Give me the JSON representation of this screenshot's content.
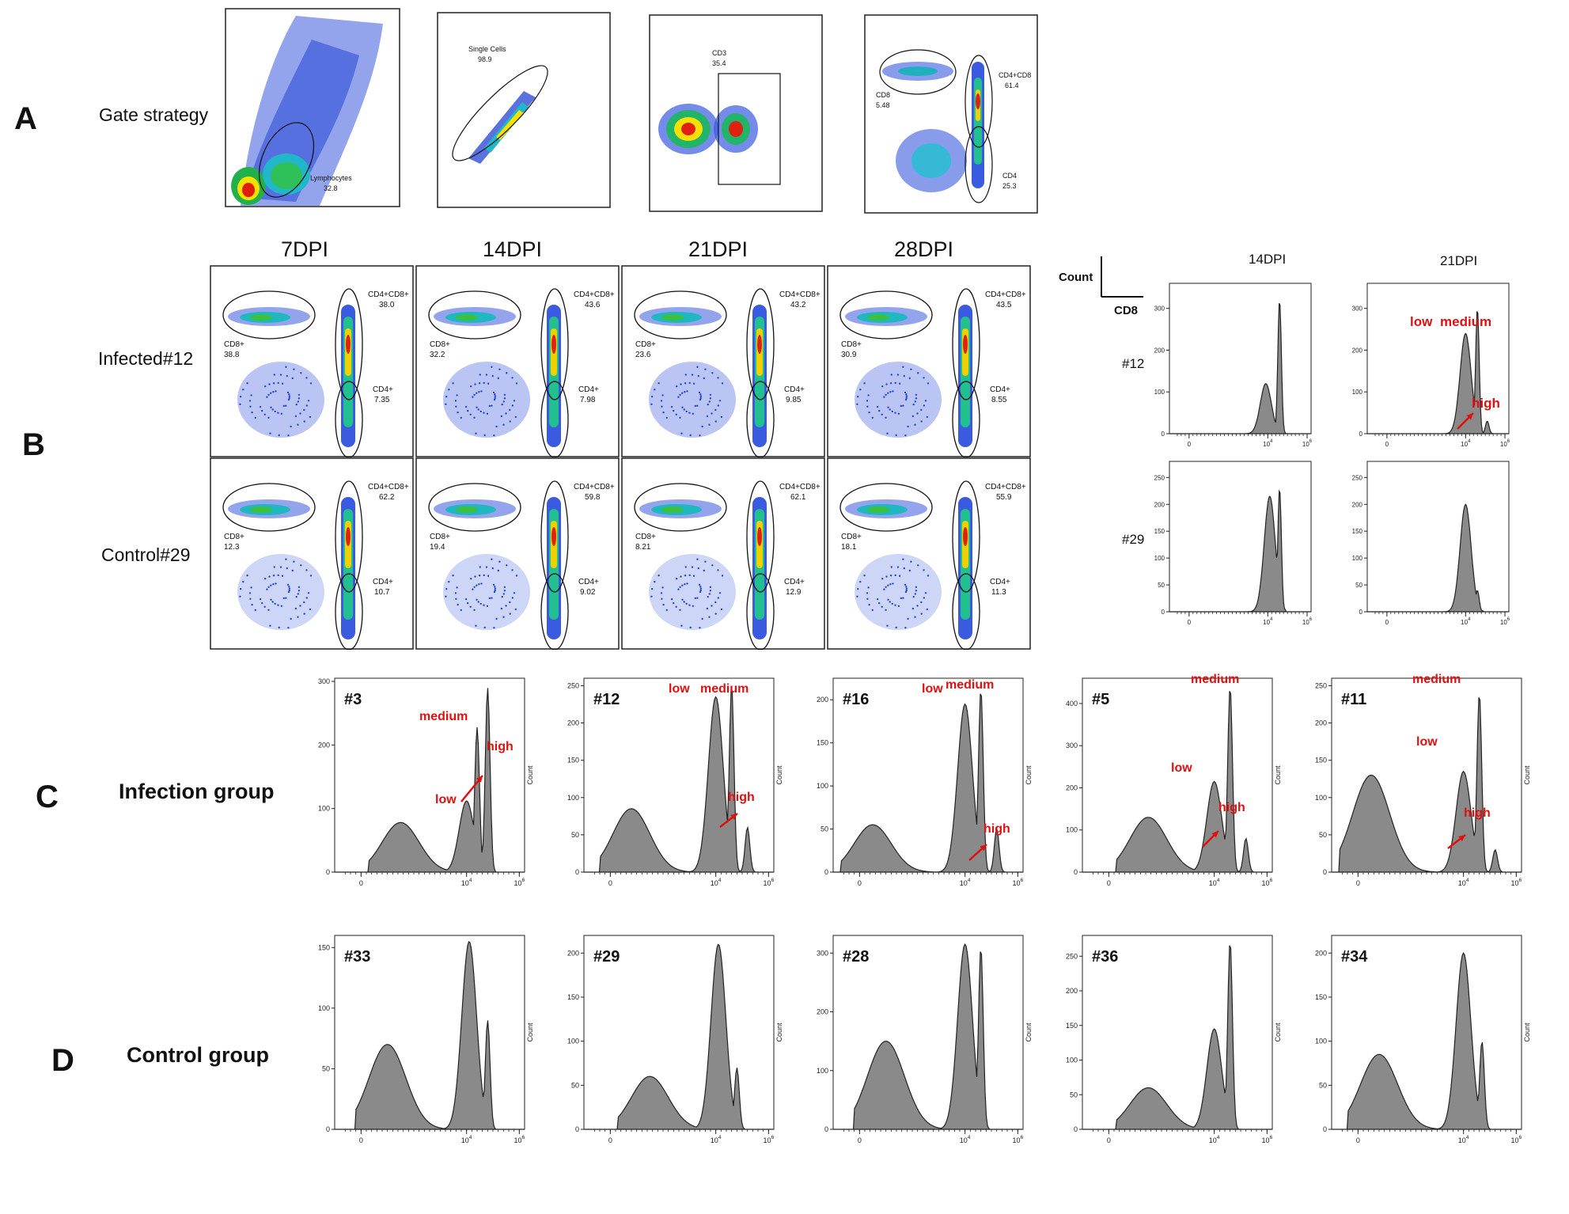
{
  "panel_labels": {
    "A": "A",
    "B": "B",
    "C": "C",
    "D": "D"
  },
  "panel_a": {
    "row_label": "Gate strategy",
    "gates": [
      {
        "name": "Lymphocytes",
        "value": "32.8"
      },
      {
        "name": "Single Cells",
        "value": "98.9"
      },
      {
        "name": "CD3",
        "value": "35.4"
      },
      {
        "name_cd8": "CD8",
        "value_cd8": "5.48",
        "name_dp": "CD4+CD8",
        "value_dp": "61.4",
        "name_cd4": "CD4",
        "value_cd4": "25.3"
      }
    ]
  },
  "panel_b": {
    "timepoints": [
      "7DPI",
      "14DPI",
      "21DPI",
      "28DPI"
    ],
    "rows": [
      {
        "label": "Infected#12",
        "plots": [
          {
            "dp": "38.0",
            "cd8": "38.8",
            "cd4": "7.35"
          },
          {
            "dp": "43.6",
            "cd8": "32.2",
            "cd4": "7.98"
          },
          {
            "dp": "43.2",
            "cd8": "23.6",
            "cd4": "9.85"
          },
          {
            "dp": "43.5",
            "cd8": "30.9",
            "cd4": "8.55"
          }
        ]
      },
      {
        "label": "Control#29",
        "plots": [
          {
            "dp": "62.2",
            "cd8": "12.3",
            "cd4": "10.7"
          },
          {
            "dp": "59.8",
            "cd8": "19.4",
            "cd4": "9.02"
          },
          {
            "dp": "62.1",
            "cd8": "8.21",
            "cd4": "12.9"
          },
          {
            "dp": "55.9",
            "cd8": "18.1",
            "cd4": "11.3"
          }
        ]
      }
    ],
    "gate_names": {
      "dp": "CD4+CD8+",
      "cd8": "CD8+",
      "cd4": "CD4+"
    },
    "legend": {
      "count": "Count",
      "cd8": "CD8"
    },
    "hist_columns": [
      "14DPI",
      "21DPI"
    ],
    "hist_rows": [
      "#12",
      "#29"
    ],
    "peak_labels": {
      "low": "low",
      "medium": "medium",
      "high": "high"
    }
  },
  "panel_c": {
    "row_label": "Infection group"
  },
  "panel_d": {
    "row_label": "Control group"
  },
  "colors": {
    "fill": "#8a8a8a",
    "annotation": "#e01010"
  },
  "chart_data": [
    {
      "type": "area",
      "id": "B-hist-12-14DPI",
      "xlabel": "CD8",
      "ylabel": "Count",
      "x_scale": "biexponential",
      "x_ticks": [
        "0",
        "10^4",
        "10^6"
      ],
      "y_ticks": [
        0,
        100,
        200,
        300
      ],
      "ylim": [
        0,
        360
      ],
      "peaks": [
        {
          "x": 3.9,
          "y": 120
        },
        {
          "x": 4.6,
          "y": 320
        }
      ]
    },
    {
      "type": "area",
      "id": "B-hist-12-21DPI",
      "xlabel": "CD8",
      "ylabel": "Count",
      "x_scale": "biexponential",
      "x_ticks": [
        "0",
        "10^4",
        "10^6"
      ],
      "y_ticks": [
        0,
        100,
        200,
        300
      ],
      "ylim": [
        0,
        360
      ],
      "peaks": [
        {
          "x": 4.0,
          "y": 240,
          "label": "low"
        },
        {
          "x": 4.6,
          "y": 300,
          "label": "medium"
        },
        {
          "x": 5.1,
          "y": 30,
          "label": "high"
        }
      ]
    },
    {
      "type": "area",
      "id": "B-hist-29-14DPI",
      "xlabel": "CD8",
      "ylabel": "Count",
      "x_scale": "biexponential",
      "x_ticks": [
        "0",
        "10^4",
        "10^6"
      ],
      "y_ticks": [
        0,
        50,
        100,
        150,
        200,
        250
      ],
      "ylim": [
        0,
        280
      ],
      "peaks": [
        {
          "x": 4.1,
          "y": 215
        },
        {
          "x": 4.6,
          "y": 230
        }
      ]
    },
    {
      "type": "area",
      "id": "B-hist-29-21DPI",
      "xlabel": "CD8",
      "ylabel": "Count",
      "x_scale": "biexponential",
      "x_ticks": [
        "0",
        "10^4",
        "10^6"
      ],
      "y_ticks": [
        0,
        50,
        100,
        150,
        200,
        250
      ],
      "ylim": [
        0,
        280
      ],
      "peaks": [
        {
          "x": 4.0,
          "y": 200
        },
        {
          "x": 4.6,
          "y": 40
        }
      ]
    },
    {
      "type": "area",
      "id": "C-3",
      "label": "#3",
      "ylabel": "Count",
      "x_ticks": [
        "0",
        "10^4",
        "10^6"
      ],
      "y_ticks": [
        0,
        100,
        200,
        300
      ],
      "ylim": [
        0,
        305
      ],
      "peaks": [
        {
          "x": 1.5,
          "y": 78
        },
        {
          "x": 4.0,
          "y": 112,
          "label": "low"
        },
        {
          "x": 4.4,
          "y": 228,
          "label": "medium"
        },
        {
          "x": 4.8,
          "y": 290,
          "label": "high"
        }
      ]
    },
    {
      "type": "area",
      "id": "C-12",
      "label": "#12",
      "ylabel": "Count",
      "x_ticks": [
        "0",
        "10^4",
        "10^6"
      ],
      "y_ticks": [
        0,
        50,
        100,
        150,
        200,
        250
      ],
      "ylim": [
        0,
        260
      ],
      "peaks": [
        {
          "x": 0.8,
          "y": 85
        },
        {
          "x": 4.0,
          "y": 235,
          "label": "low"
        },
        {
          "x": 4.6,
          "y": 250,
          "label": "medium"
        },
        {
          "x": 5.2,
          "y": 60,
          "label": "high"
        }
      ]
    },
    {
      "type": "area",
      "id": "C-16",
      "label": "#16",
      "ylabel": "Count",
      "x_ticks": [
        "0",
        "10^4",
        "10^6"
      ],
      "y_ticks": [
        0,
        50,
        100,
        150,
        200
      ],
      "ylim": [
        0,
        225
      ],
      "peaks": [
        {
          "x": 0.5,
          "y": 55
        },
        {
          "x": 4.0,
          "y": 195,
          "label": "low"
        },
        {
          "x": 4.6,
          "y": 212,
          "label": "medium"
        },
        {
          "x": 5.2,
          "y": 50,
          "label": "high"
        }
      ]
    },
    {
      "type": "area",
      "id": "C-5",
      "label": "#5",
      "ylabel": "Count",
      "x_ticks": [
        "0",
        "10^4",
        "10^6"
      ],
      "y_ticks": [
        0,
        100,
        200,
        300,
        400
      ],
      "ylim": [
        0,
        460
      ],
      "peaks": [
        {
          "x": 1.5,
          "y": 130
        },
        {
          "x": 4.0,
          "y": 215,
          "label": "low"
        },
        {
          "x": 4.6,
          "y": 440,
          "label": "medium"
        },
        {
          "x": 5.2,
          "y": 80,
          "label": "high"
        }
      ]
    },
    {
      "type": "area",
      "id": "C-11",
      "label": "#11",
      "ylabel": "Count",
      "x_ticks": [
        "0",
        "10^4",
        "10^6"
      ],
      "y_ticks": [
        0,
        50,
        100,
        150,
        200,
        250
      ],
      "ylim": [
        0,
        260
      ],
      "peaks": [
        {
          "x": 0.5,
          "y": 130
        },
        {
          "x": 4.0,
          "y": 135,
          "label": "low"
        },
        {
          "x": 4.6,
          "y": 240,
          "label": "medium"
        },
        {
          "x": 5.2,
          "y": 30,
          "label": "high"
        }
      ]
    },
    {
      "type": "area",
      "id": "D-33",
      "label": "#33",
      "ylabel": "Count",
      "x_ticks": [
        "0",
        "10^4",
        "10^6"
      ],
      "y_ticks": [
        0,
        50,
        100,
        150
      ],
      "ylim": [
        0,
        160
      ],
      "peaks": [
        {
          "x": 1.0,
          "y": 70
        },
        {
          "x": 4.1,
          "y": 155
        },
        {
          "x": 4.8,
          "y": 90
        }
      ]
    },
    {
      "type": "area",
      "id": "D-29",
      "label": "#29",
      "ylabel": "Count",
      "x_ticks": [
        "0",
        "10^4",
        "10^6"
      ],
      "y_ticks": [
        0,
        50,
        100,
        150,
        200
      ],
      "ylim": [
        0,
        220
      ],
      "peaks": [
        {
          "x": 1.5,
          "y": 60
        },
        {
          "x": 4.1,
          "y": 210
        },
        {
          "x": 4.8,
          "y": 70
        }
      ]
    },
    {
      "type": "area",
      "id": "D-28",
      "label": "#28",
      "ylabel": "Count",
      "x_ticks": [
        "0",
        "10^4",
        "10^6"
      ],
      "y_ticks": [
        0,
        100,
        200,
        300
      ],
      "ylim": [
        0,
        330
      ],
      "peaks": [
        {
          "x": 1.0,
          "y": 150
        },
        {
          "x": 4.0,
          "y": 315
        },
        {
          "x": 4.6,
          "y": 310
        }
      ]
    },
    {
      "type": "area",
      "id": "D-36",
      "label": "#36",
      "ylabel": "Count",
      "x_ticks": [
        "0",
        "10^4",
        "10^6"
      ],
      "y_ticks": [
        0,
        50,
        100,
        150,
        200,
        250
      ],
      "ylim": [
        0,
        280
      ],
      "peaks": [
        {
          "x": 1.5,
          "y": 60
        },
        {
          "x": 4.0,
          "y": 145
        },
        {
          "x": 4.6,
          "y": 272
        }
      ]
    },
    {
      "type": "area",
      "id": "D-34",
      "label": "#34",
      "ylabel": "Count",
      "x_ticks": [
        "0",
        "10^4",
        "10^6"
      ],
      "y_ticks": [
        0,
        50,
        100,
        150,
        200
      ],
      "ylim": [
        0,
        220
      ],
      "peaks": [
        {
          "x": 0.8,
          "y": 85
        },
        {
          "x": 4.0,
          "y": 200
        },
        {
          "x": 4.7,
          "y": 100
        }
      ]
    }
  ]
}
